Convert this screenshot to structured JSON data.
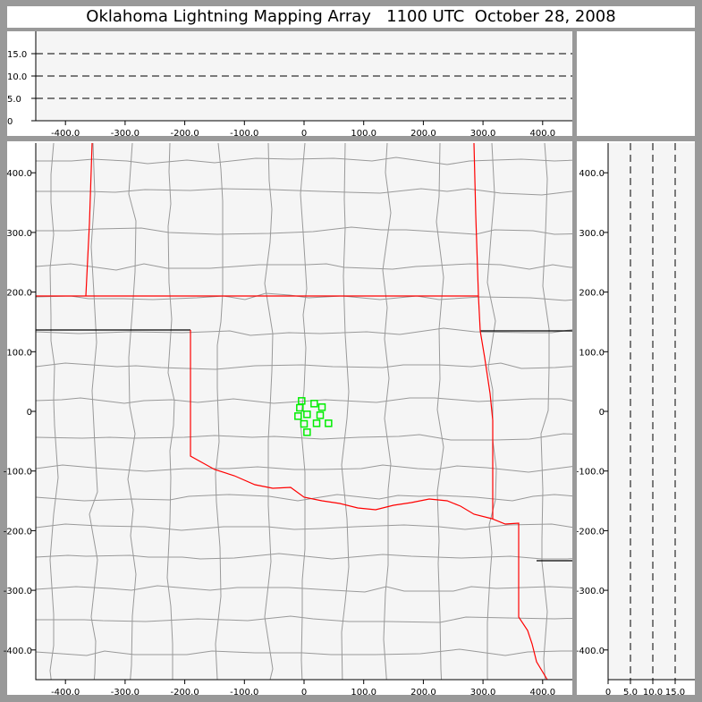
{
  "title": "Oklahoma Lightning Mapping Array   1100 UTC  October 28, 2008",
  "colors": {
    "frame": "#999999",
    "plot_bg": "#f5f5f5",
    "county": "#999999",
    "state_border": "#ff0000",
    "source": "#00ee00"
  },
  "map": {
    "x_ticks": [
      "-400.0",
      "-300.0",
      "-200.0",
      "-100.0",
      "0",
      "100.0",
      "200.0",
      "300.0",
      "400.0"
    ],
    "x_tick_values": [
      -400,
      -300,
      -200,
      -100,
      0,
      100,
      200,
      300,
      400
    ],
    "y_ticks": [
      "400.0",
      "300.0",
      "200.0",
      "100.0",
      "0",
      "-100.0",
      "-200.0",
      "-300.0",
      "-400.0"
    ],
    "y_tick_values": [
      400,
      300,
      200,
      100,
      0,
      -100,
      -200,
      -300,
      -400
    ],
    "range_km": [
      -450,
      450
    ],
    "sources_km": [
      [
        -4,
        17.5
      ],
      [
        17,
        13
      ],
      [
        -7,
        6
      ],
      [
        30,
        7
      ],
      [
        5,
        -5
      ],
      [
        -10,
        -8
      ],
      [
        27,
        -6.5
      ],
      [
        0,
        -21
      ],
      [
        21,
        -20
      ],
      [
        41,
        -20
      ],
      [
        5,
        -35
      ]
    ]
  },
  "altitude_top": {
    "y_ticks": [
      "0",
      "5.0",
      "10.0",
      "15.0"
    ],
    "y_tick_values": [
      0,
      5,
      10,
      15
    ],
    "range_km": [
      0,
      20
    ]
  },
  "altitude_right": {
    "x_ticks": [
      "0",
      "5.0",
      "10.0",
      "15.0"
    ],
    "x_tick_values": [
      0,
      5,
      10,
      15
    ]
  }
}
